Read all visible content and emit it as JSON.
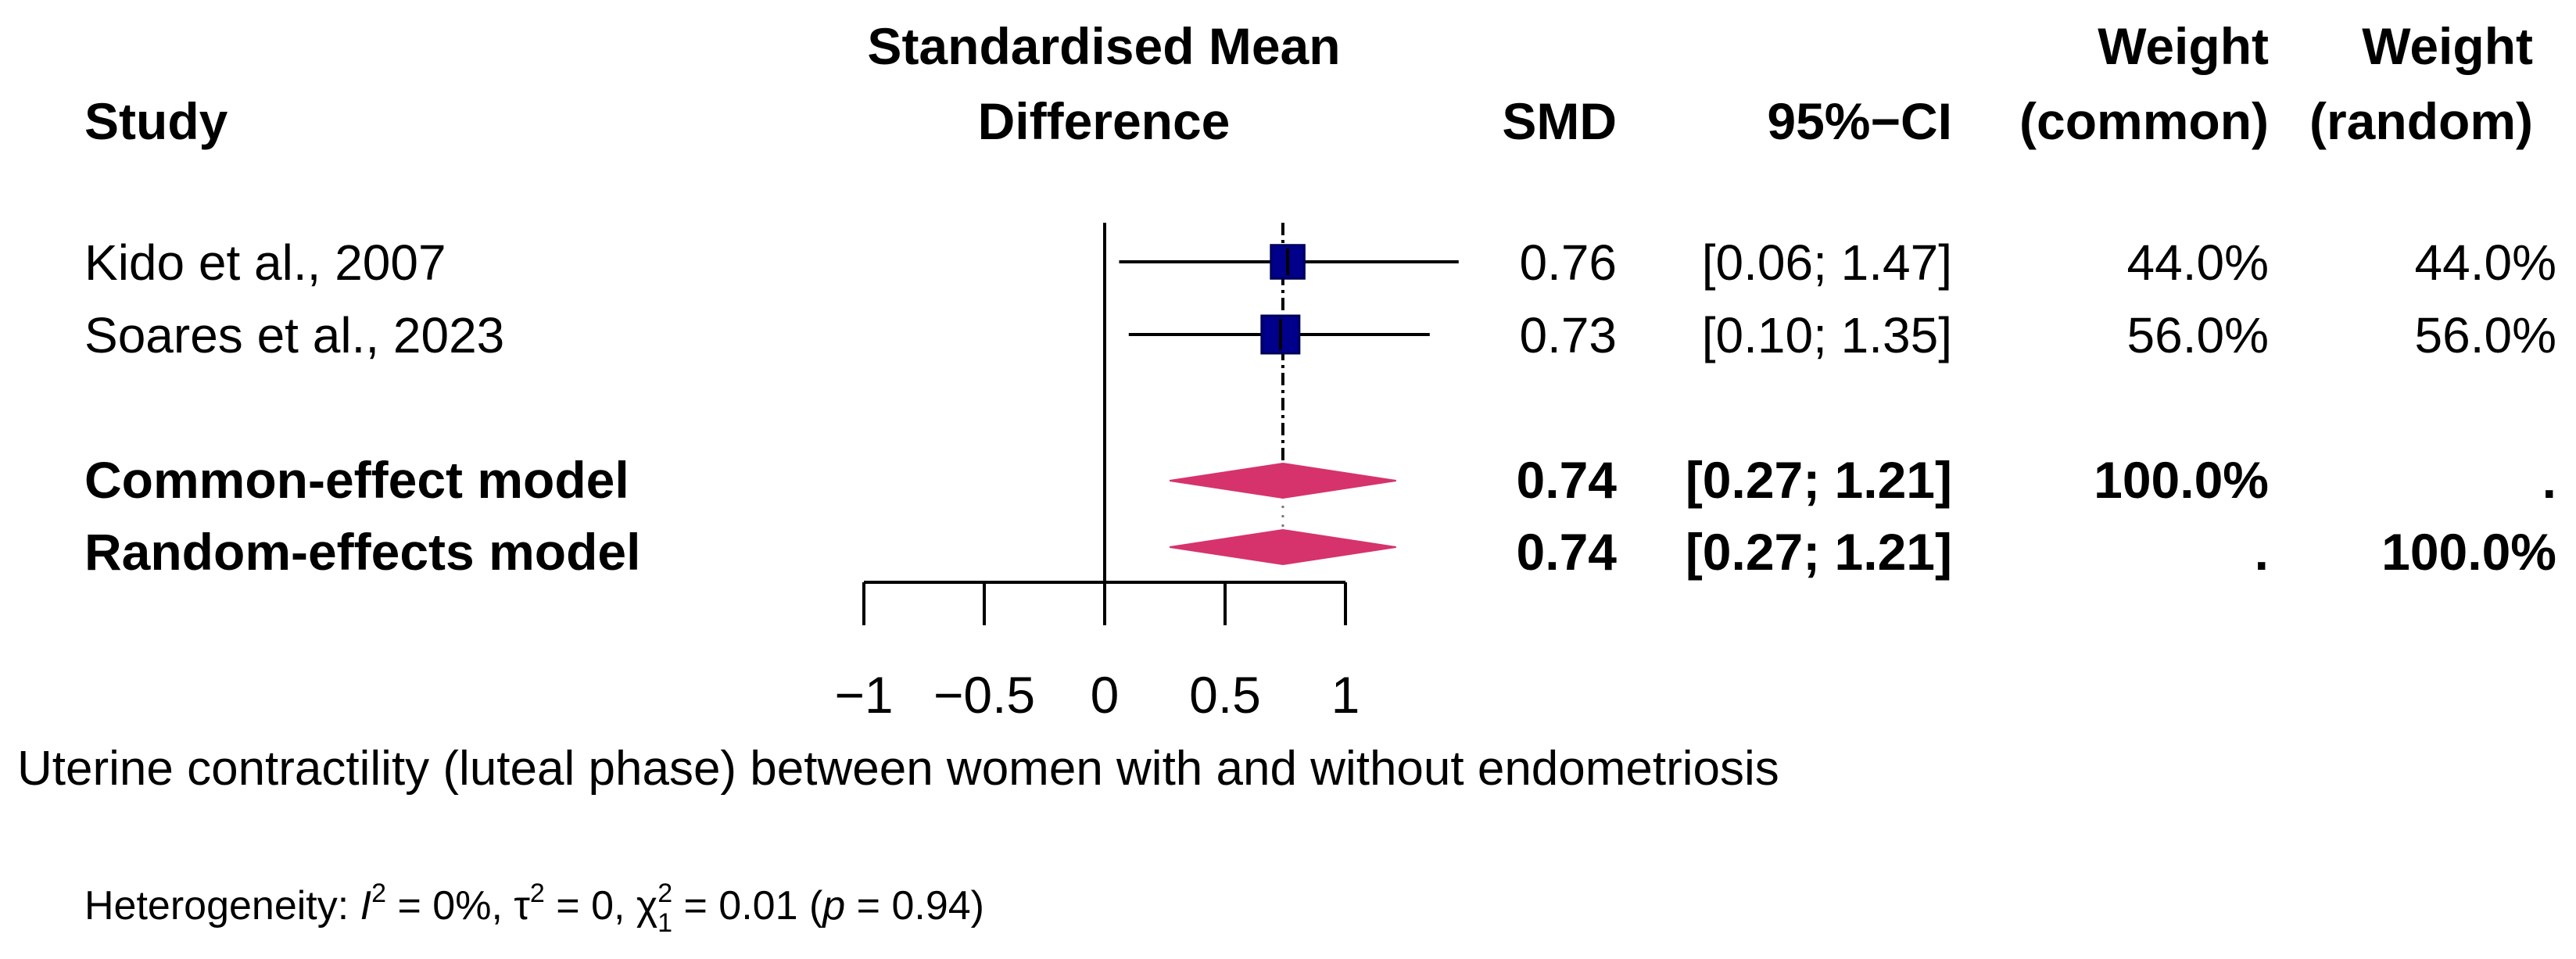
{
  "chart_data": {
    "type": "forest",
    "headers": {
      "study": "Study",
      "effect_line1": "Standardised Mean",
      "effect_line2": "Difference",
      "smd": "SMD",
      "ci": "95%−CI",
      "weight_common_line1": "Weight",
      "weight_common_line2": "(common)",
      "weight_random_line1": "Weight",
      "weight_random_line2": "(random)"
    },
    "studies": [
      {
        "label": "Kido et al., 2007",
        "smd": 0.76,
        "lower": 0.06,
        "upper": 1.47,
        "smd_text": "0.76",
        "ci_text": "[0.06; 1.47]",
        "w_common": "44.0%",
        "w_random": "44.0%"
      },
      {
        "label": "Soares et al., 2023",
        "smd": 0.73,
        "lower": 0.1,
        "upper": 1.35,
        "smd_text": "0.73",
        "ci_text": "[0.10; 1.35]",
        "w_common": "56.0%",
        "w_random": "56.0%"
      }
    ],
    "models": [
      {
        "label": "Common-effect model",
        "smd": 0.74,
        "lower": 0.27,
        "upper": 1.21,
        "smd_text": "0.74",
        "ci_text": "[0.27; 1.21]",
        "w_common": "100.0%",
        "w_random": "."
      },
      {
        "label": "Random-effects model",
        "smd": 0.74,
        "lower": 0.27,
        "upper": 1.21,
        "smd_text": "0.74",
        "ci_text": "[0.27; 1.21]",
        "w_common": ".",
        "w_random": "100.0%"
      }
    ],
    "x_axis": {
      "range": [
        -1,
        1
      ],
      "ticks": [
        -1,
        -0.5,
        0,
        0.5,
        1
      ],
      "tick_labels": [
        "−1",
        "−0.5",
        "0",
        "0.5",
        "1"
      ],
      "label": "Uterine contractility (luteal phase) between women with and without endometriosis"
    },
    "heterogeneity": {
      "prefix": "Heterogeneity: ",
      "i2_symbol": "I",
      "i2_exp": "2",
      "i2_value": " = 0%, ",
      "tau_symbol": "τ",
      "tau_exp": "2",
      "tau_value": " = 0, ",
      "chi_symbol": "χ",
      "chi_exp": "2",
      "chi_sub": "1",
      "chi_value": " = 0.01 (",
      "p_symbol": "p",
      "p_value": " = 0.94)"
    },
    "colors": {
      "square": "#00008B",
      "diamond": "#D6336C",
      "line": "#000000"
    }
  }
}
